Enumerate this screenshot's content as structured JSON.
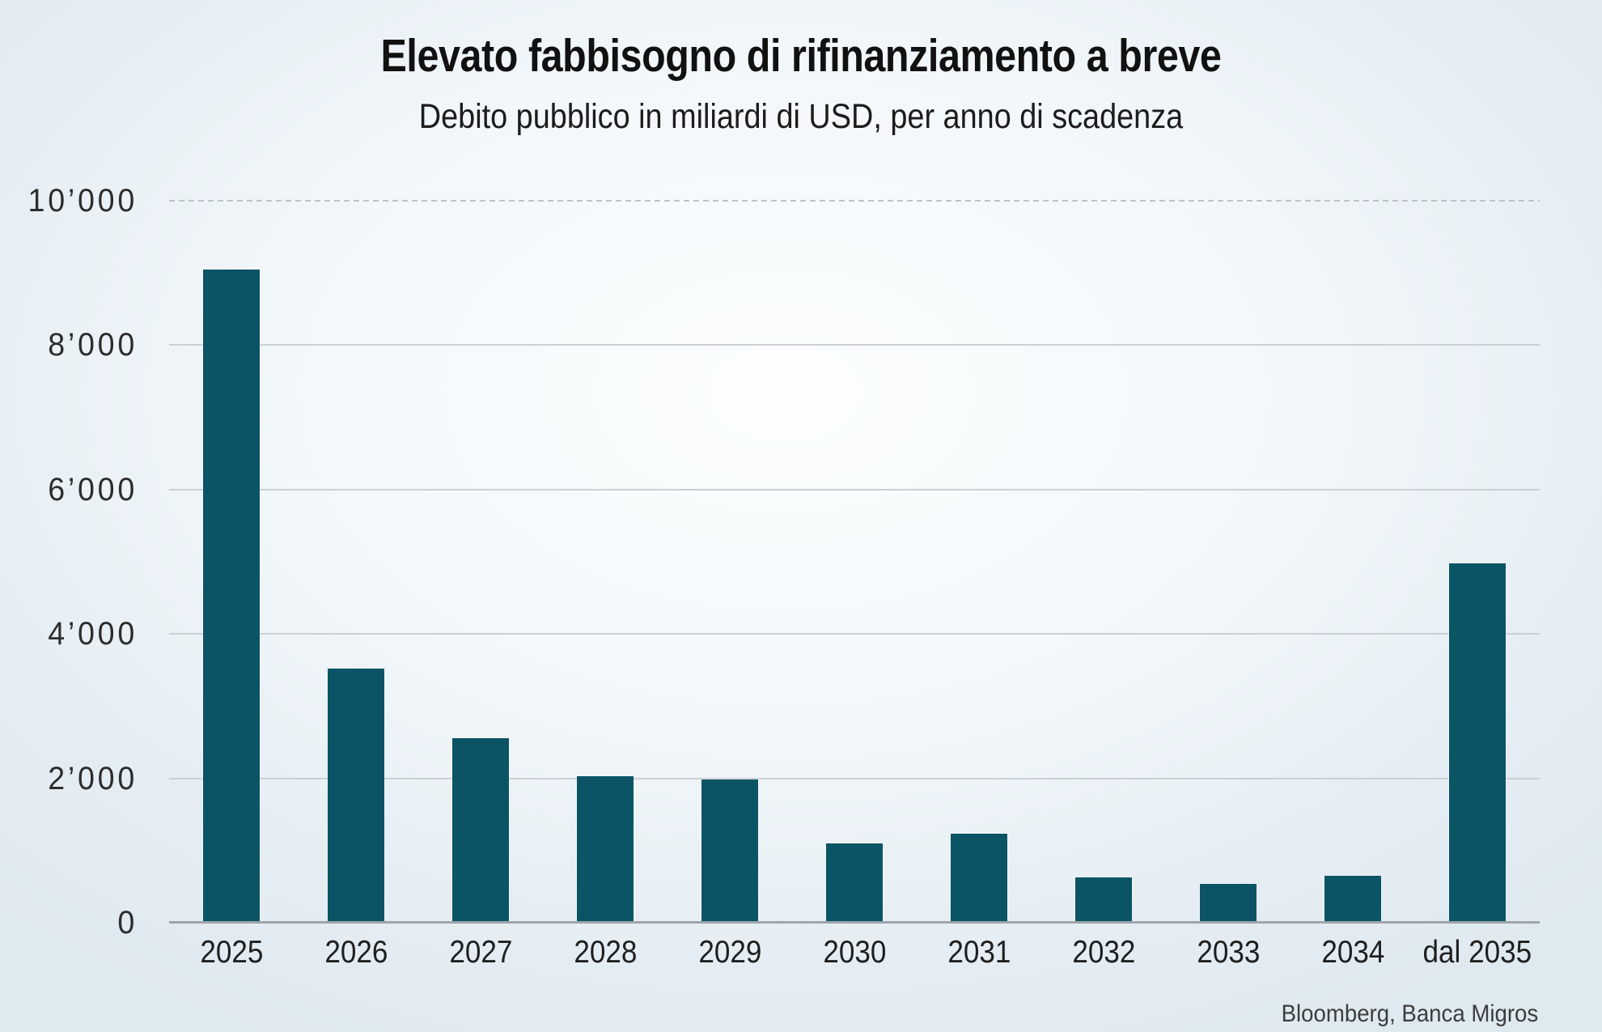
{
  "chart_data": {
    "type": "bar",
    "title": "Elevato fabbisogno di rifinanziamento a breve",
    "subtitle": "Debito pubblico in miliardi di USD, per anno di scadenza",
    "source": "Bloomberg, Banca Migros",
    "categories": [
      "2025",
      "2026",
      "2027",
      "2028",
      "2029",
      "2030",
      "2031",
      "2032",
      "2033",
      "2034",
      "dal 2035"
    ],
    "values": [
      9050,
      3520,
      2560,
      2030,
      1980,
      1100,
      1230,
      630,
      540,
      650,
      4980
    ],
    "xlabel": "",
    "ylabel": "",
    "ylim": [
      0,
      10000
    ],
    "yticks": [
      {
        "value": 10000,
        "label": "10’000"
      },
      {
        "value": 8000,
        "label": "8’000"
      },
      {
        "value": 6000,
        "label": "6’000"
      },
      {
        "value": 4000,
        "label": "4’000"
      },
      {
        "value": 2000,
        "label": "2’000"
      },
      {
        "value": 0,
        "label": "0"
      }
    ],
    "grid": "horizontal",
    "top_gridline_style": "dashed",
    "legend": "none",
    "colors": {
      "bar": "#0B5465",
      "gridline": "#CBD0D5",
      "top_gridline": "#BCC3C9",
      "baseline": "#9EA5AB",
      "background_center": "#FCFEFE",
      "background_edge": "#DFE9F0",
      "title_text": "#111111",
      "subtitle_text": "#1C1C1C",
      "axis_text": "#2D2D2D",
      "source_text": "#3D3D3D"
    }
  }
}
